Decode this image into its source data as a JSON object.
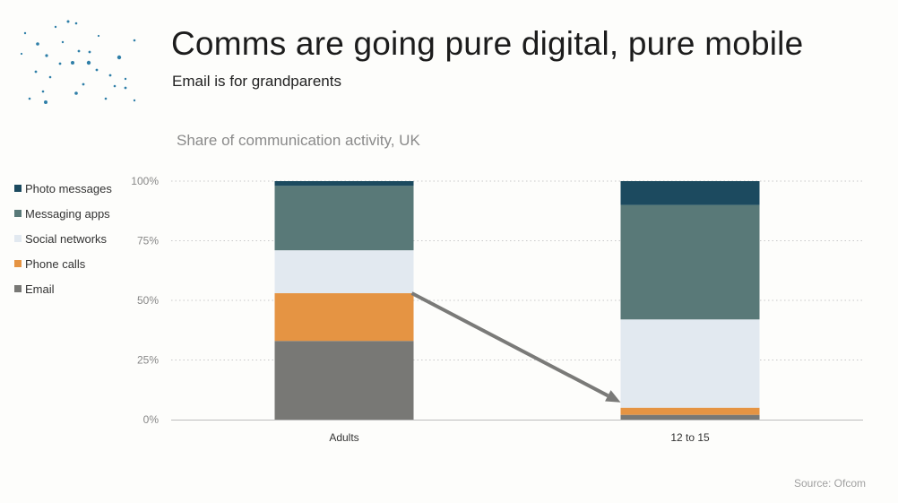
{
  "header": {
    "title": "Comms are going pure digital, pure mobile",
    "subtitle": "Email is for grandparents"
  },
  "footer": {
    "source": "Source: Ofcom"
  },
  "chart_data": {
    "type": "bar",
    "stacked": true,
    "title": "Share of communication activity, UK",
    "categories": [
      "Adults",
      "12 to 15"
    ],
    "ylim": [
      0,
      100
    ],
    "y_ticks": [
      "0%",
      "25%",
      "50%",
      "75%",
      "100%"
    ],
    "y_tick_values": [
      0,
      25,
      50,
      75,
      100
    ],
    "grid": true,
    "legend_position": "left",
    "series": [
      {
        "name": "Email",
        "color": "#787875",
        "values": [
          33,
          2
        ]
      },
      {
        "name": "Phone calls",
        "color": "#e59443",
        "values": [
          20,
          3
        ]
      },
      {
        "name": "Social networks",
        "color": "#e2e9f0",
        "values": [
          18,
          37
        ]
      },
      {
        "name": "Messaging apps",
        "color": "#597978",
        "values": [
          27,
          48
        ]
      },
      {
        "name": "Photo messages",
        "color": "#1c4a5f",
        "values": [
          2,
          10
        ]
      }
    ],
    "annotation": {
      "type": "arrow",
      "from": [
        "Adults",
        53
      ],
      "to": [
        "12 to 15",
        5
      ],
      "color": "#7a7a78"
    }
  }
}
